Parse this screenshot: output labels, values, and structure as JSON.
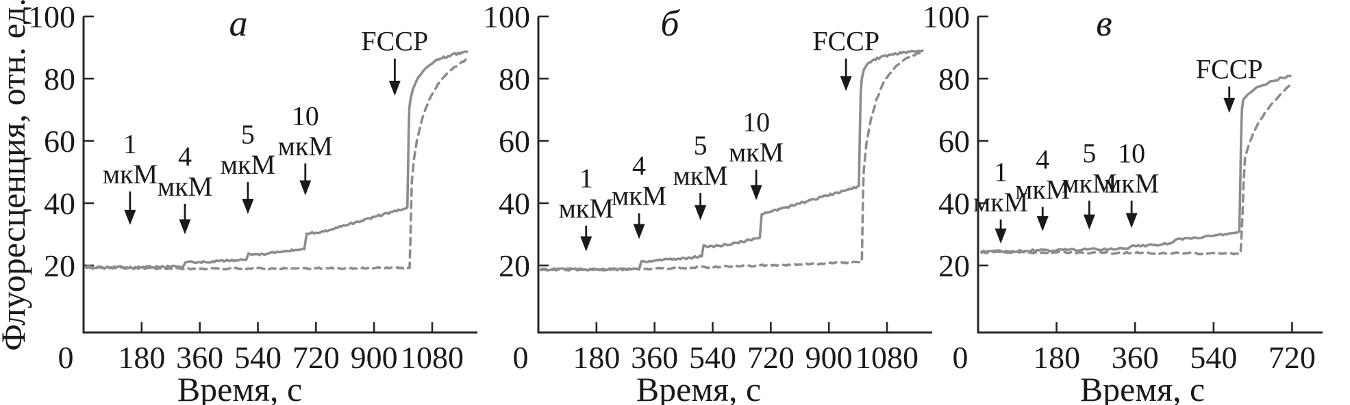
{
  "figure": {
    "background": "#ffffff",
    "axis_color": "#262626",
    "text_color": "#1a1a1a",
    "trace_color": "#8c8c8c"
  },
  "chart_data": {
    "type": "line",
    "title": "",
    "ylabel": "Флуоресценция, отн. ед.",
    "xlabel": "Время, с",
    "ylim": [
      0,
      100
    ],
    "y_ticks": [
      20,
      40,
      60,
      80,
      100
    ],
    "grid": "off",
    "legend": "none",
    "series_style_note": "solid and dashed traces share one gray color",
    "panels": [
      {
        "id": "a",
        "letter": "а",
        "x_max": 1220,
        "x_ticks": [
          0,
          180,
          360,
          540,
          720,
          900,
          1080
        ],
        "annotations": [
          {
            "lines": [
              "1",
              "мкМ"
            ],
            "t": 144,
            "label_v": 64,
            "tip_v": 33
          },
          {
            "lines": [
              "4",
              "мкМ"
            ],
            "t": 314,
            "label_v": 60,
            "tip_v": 30
          },
          {
            "lines": [
              "5",
              "мкМ"
            ],
            "t": 509,
            "label_v": 67,
            "tip_v": 36.5
          },
          {
            "lines": [
              "10",
              "мкМ"
            ],
            "t": 687,
            "label_v": 73,
            "tip_v": 42.5
          },
          {
            "lines": [
              "FCCP"
            ],
            "t": 964,
            "label_v": 97,
            "tip_v": 74.5
          }
        ],
        "series": {
          "solid": [
            [
              8,
              19.6
            ],
            [
              60,
              19.3
            ],
            [
              120,
              19.5
            ],
            [
              180,
              19.4
            ],
            [
              240,
              19.6
            ],
            [
              308,
              19.6
            ],
            [
              316,
              21.0
            ],
            [
              360,
              21.1
            ],
            [
              420,
              21.4
            ],
            [
              470,
              21.6
            ],
            [
              504,
              21.8
            ],
            [
              511,
              23.9
            ],
            [
              540,
              23.6
            ],
            [
              575,
              23.9
            ],
            [
              620,
              24.5
            ],
            [
              660,
              25.0
            ],
            [
              684,
              25.2
            ],
            [
              691,
              30.2
            ],
            [
              720,
              30.5
            ],
            [
              760,
              31.3
            ],
            [
              810,
              32.8
            ],
            [
              860,
              34.3
            ],
            [
              910,
              35.9
            ],
            [
              955,
              37.2
            ],
            [
              990,
              38.1
            ],
            [
              1003,
              38.6
            ],
            [
              1005,
              50
            ],
            [
              1007,
              62
            ],
            [
              1009,
              70.5
            ],
            [
              1013,
              73.5
            ],
            [
              1020,
              76.5
            ],
            [
              1032,
              79.5
            ],
            [
              1050,
              82.2
            ],
            [
              1075,
              84.6
            ],
            [
              1105,
              86.4
            ],
            [
              1140,
              87.7
            ],
            [
              1170,
              88.3
            ],
            [
              1188,
              88.7
            ]
          ],
          "dashed": [
            [
              8,
              19.2
            ],
            [
              150,
              19.1
            ],
            [
              300,
              19.0
            ],
            [
              450,
              19.0
            ],
            [
              600,
              19.05
            ],
            [
              750,
              19.1
            ],
            [
              900,
              19.15
            ],
            [
              1010,
              19.2
            ],
            [
              1013,
              30
            ],
            [
              1015,
              40
            ],
            [
              1017,
              47
            ],
            [
              1024,
              54.5
            ],
            [
              1034,
              61
            ],
            [
              1050,
              67.5
            ],
            [
              1072,
              73.5
            ],
            [
              1098,
              78.3
            ],
            [
              1128,
              81.9
            ],
            [
              1158,
              84.4
            ],
            [
              1188,
              86.2
            ]
          ]
        }
      },
      {
        "id": "b",
        "letter": "б",
        "x_max": 1220,
        "x_ticks": [
          0,
          180,
          360,
          540,
          720,
          900,
          1080
        ],
        "annotations": [
          {
            "lines": [
              "1",
              "мкМ"
            ],
            "t": 148,
            "label_v": 53,
            "tip_v": 24.5
          },
          {
            "lines": [
              "4",
              "мкМ"
            ],
            "t": 312,
            "label_v": 57,
            "tip_v": 28.5
          },
          {
            "lines": [
              "5",
              "мкМ"
            ],
            "t": 502,
            "label_v": 63.5,
            "tip_v": 34.5
          },
          {
            "lines": [
              "10",
              "мкМ"
            ],
            "t": 675,
            "label_v": 71,
            "tip_v": 41
          },
          {
            "lines": [
              "FCCP"
            ],
            "t": 953,
            "label_v": 97,
            "tip_v": 76
          }
        ],
        "series": {
          "solid": [
            [
              8,
              18.7
            ],
            [
              80,
              18.8
            ],
            [
              160,
              18.7
            ],
            [
              240,
              18.8
            ],
            [
              312,
              18.7
            ],
            [
              319,
              21.3
            ],
            [
              370,
              21.6
            ],
            [
              430,
              22.1
            ],
            [
              480,
              22.6
            ],
            [
              506,
              22.9
            ],
            [
              512,
              26.5
            ],
            [
              526,
              25.9
            ],
            [
              560,
              26.3
            ],
            [
              610,
              27.2
            ],
            [
              655,
              28.2
            ],
            [
              686,
              28.9
            ],
            [
              692,
              36.5
            ],
            [
              720,
              37.2
            ],
            [
              770,
              38.7
            ],
            [
              830,
              40.5
            ],
            [
              890,
              42.3
            ],
            [
              945,
              43.9
            ],
            [
              988,
              45.3
            ],
            [
              993,
              45.6
            ],
            [
              995,
              58
            ],
            [
              997,
              68
            ],
            [
              999,
              76
            ],
            [
              1002,
              80
            ],
            [
              1008,
              82.8
            ],
            [
              1018,
              84.6
            ],
            [
              1035,
              85.9
            ],
            [
              1060,
              86.9
            ],
            [
              1095,
              87.8
            ],
            [
              1135,
              88.5
            ],
            [
              1175,
              88.9
            ],
            [
              1190,
              89.0
            ]
          ],
          "dashed": [
            [
              8,
              18.5
            ],
            [
              150,
              18.7
            ],
            [
              300,
              18.9
            ],
            [
              450,
              19.2
            ],
            [
              600,
              19.7
            ],
            [
              750,
              20.2
            ],
            [
              900,
              20.7
            ],
            [
              995,
              21.0
            ],
            [
              1002,
              21.1
            ],
            [
              1004,
              32
            ],
            [
              1006,
              44
            ],
            [
              1008,
              50.5
            ],
            [
              1016,
              59
            ],
            [
              1030,
              67
            ],
            [
              1048,
              73.5
            ],
            [
              1070,
              79
            ],
            [
              1098,
              83
            ],
            [
              1130,
              85.8
            ],
            [
              1160,
              87.5
            ],
            [
              1190,
              88.6
            ]
          ]
        }
      },
      {
        "id": "c",
        "letter": "в",
        "x_max": 790,
        "x_ticks": [
          0,
          180,
          360,
          540,
          720
        ],
        "annotations": [
          {
            "lines": [
              "1",
              "мкМ"
            ],
            "t": 52,
            "label_v": 55,
            "tip_v": 27
          },
          {
            "lines": [
              "4",
              "мкМ"
            ],
            "t": 148,
            "label_v": 59,
            "tip_v": 31
          },
          {
            "lines": [
              "5",
              "мкМ"
            ],
            "t": 255,
            "label_v": 61,
            "tip_v": 31.5
          },
          {
            "lines": [
              "10",
              "мкМ"
            ],
            "t": 352,
            "label_v": 61,
            "tip_v": 32
          },
          {
            "lines": [
              "FCCP"
            ],
            "t": 576,
            "label_v": 88,
            "tip_v": 69
          }
        ],
        "series": {
          "solid": [
            [
              8,
              24.4
            ],
            [
              80,
              24.6
            ],
            [
              160,
              24.9
            ],
            [
              240,
              25.1
            ],
            [
              320,
              25.3
            ],
            [
              344,
              25.4
            ],
            [
              351,
              26.2
            ],
            [
              400,
              26.6
            ],
            [
              438,
              27.0
            ],
            [
              453,
              28.3
            ],
            [
              500,
              28.9
            ],
            [
              545,
              29.7
            ],
            [
              592,
              30.5
            ],
            [
              599,
              30.9
            ],
            [
              601,
              45
            ],
            [
              603,
              60
            ],
            [
              605,
              70
            ],
            [
              608,
              73.2
            ],
            [
              618,
              74.9
            ],
            [
              632,
              76.4
            ],
            [
              652,
              77.9
            ],
            [
              675,
              79.2
            ],
            [
              698,
              80.3
            ],
            [
              716,
              80.9
            ]
          ],
          "dashed": [
            [
              8,
              24.1
            ],
            [
              120,
              24.2
            ],
            [
              240,
              24.1
            ],
            [
              360,
              24.0
            ],
            [
              480,
              23.9
            ],
            [
              570,
              23.8
            ],
            [
              602,
              23.9
            ],
            [
              606,
              35
            ],
            [
              609,
              47
            ],
            [
              612,
              54.5
            ],
            [
              620,
              58.5
            ],
            [
              632,
              62.8
            ],
            [
              648,
              67
            ],
            [
              668,
              70.9
            ],
            [
              690,
              74.4
            ],
            [
              706,
              76.8
            ],
            [
              718,
              78.3
            ]
          ]
        }
      }
    ]
  }
}
